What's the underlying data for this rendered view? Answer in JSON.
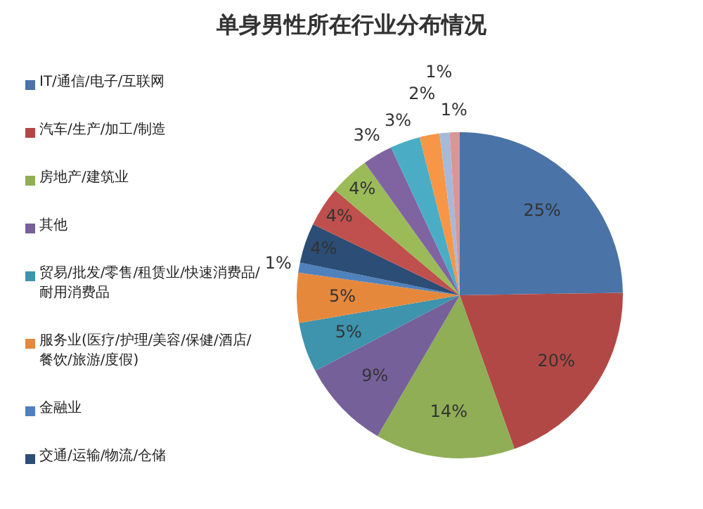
{
  "chart_data": {
    "type": "pie",
    "title": "单身男性所在行业分布情况",
    "categories": [
      "IT/通信/电子/互联网",
      "汽车/生产/加工/制造",
      "房地产/建筑业",
      "其他",
      "贸易/批发/零售/租赁业/快速消费品/耐用消费品",
      "服务业(医疗/护理/美容/保健/酒店/餐饮/旅游/度假)",
      "金融业",
      "交通/运输/物流/仓储",
      null,
      null,
      null,
      null,
      null,
      null,
      null
    ],
    "values": [
      25,
      20,
      14,
      9,
      5,
      5,
      1,
      4,
      4,
      4,
      3,
      3,
      2,
      1,
      1
    ],
    "colors": [
      "#4a73a8",
      "#b24845",
      "#8fae55",
      "#76609a",
      "#3e93ad",
      "#e6883c",
      "#4f81bd",
      "#2c4d75",
      "#c0504d",
      "#9bbb59",
      "#8064a2",
      "#4bacc6",
      "#f79646",
      "#a5b9d9",
      "#d99694"
    ],
    "value_labels": [
      "25%",
      "20%",
      "14%",
      "9%",
      "5%",
      "5%",
      "1%",
      "4%",
      "4%",
      "4%",
      "3%",
      "3%",
      "2%",
      "1%",
      "1%"
    ],
    "legend": "left"
  }
}
